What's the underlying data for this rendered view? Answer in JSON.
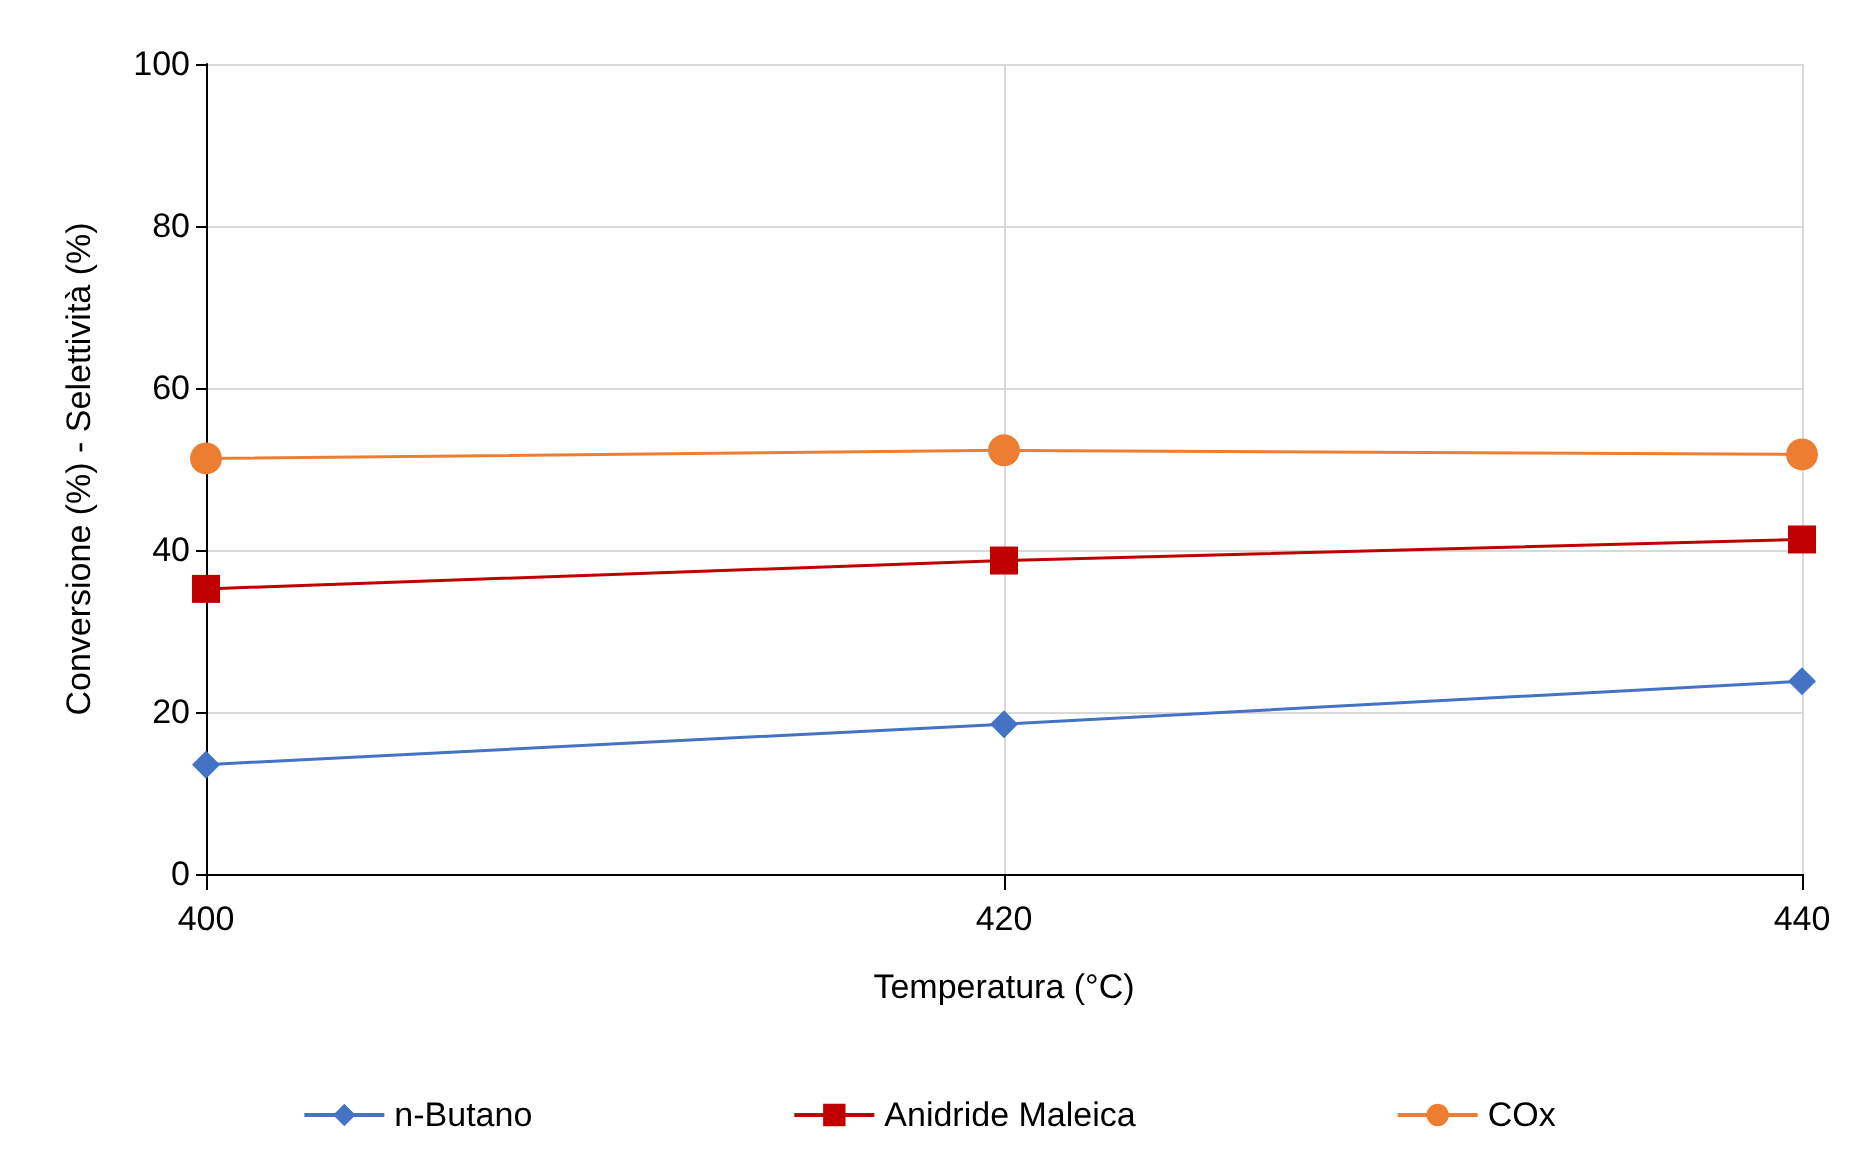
{
  "chart_data": {
    "type": "line",
    "xlabel": "Temperatura (°C)",
    "ylabel": "Conversione (%) - Selettività (%)",
    "x": [
      400,
      420,
      440
    ],
    "series": [
      {
        "name": "n-Butano",
        "color": "#4472c4",
        "marker": "diamond",
        "values": [
          13.5,
          18.5,
          23.8
        ]
      },
      {
        "name": "Anidride Maleica",
        "color": "#c00000",
        "marker": "square",
        "values": [
          35.2,
          38.7,
          41.3
        ]
      },
      {
        "name": "COx",
        "color": "#ed7d31",
        "marker": "circle",
        "values": [
          51.3,
          52.3,
          51.8
        ]
      }
    ],
    "xlim": [
      400,
      440
    ],
    "xticks": [
      400,
      420,
      440
    ],
    "ylim": [
      0,
      100
    ],
    "yticks": [
      0,
      20,
      40,
      60,
      80,
      100
    ],
    "grid": true,
    "legend": "bottom"
  }
}
